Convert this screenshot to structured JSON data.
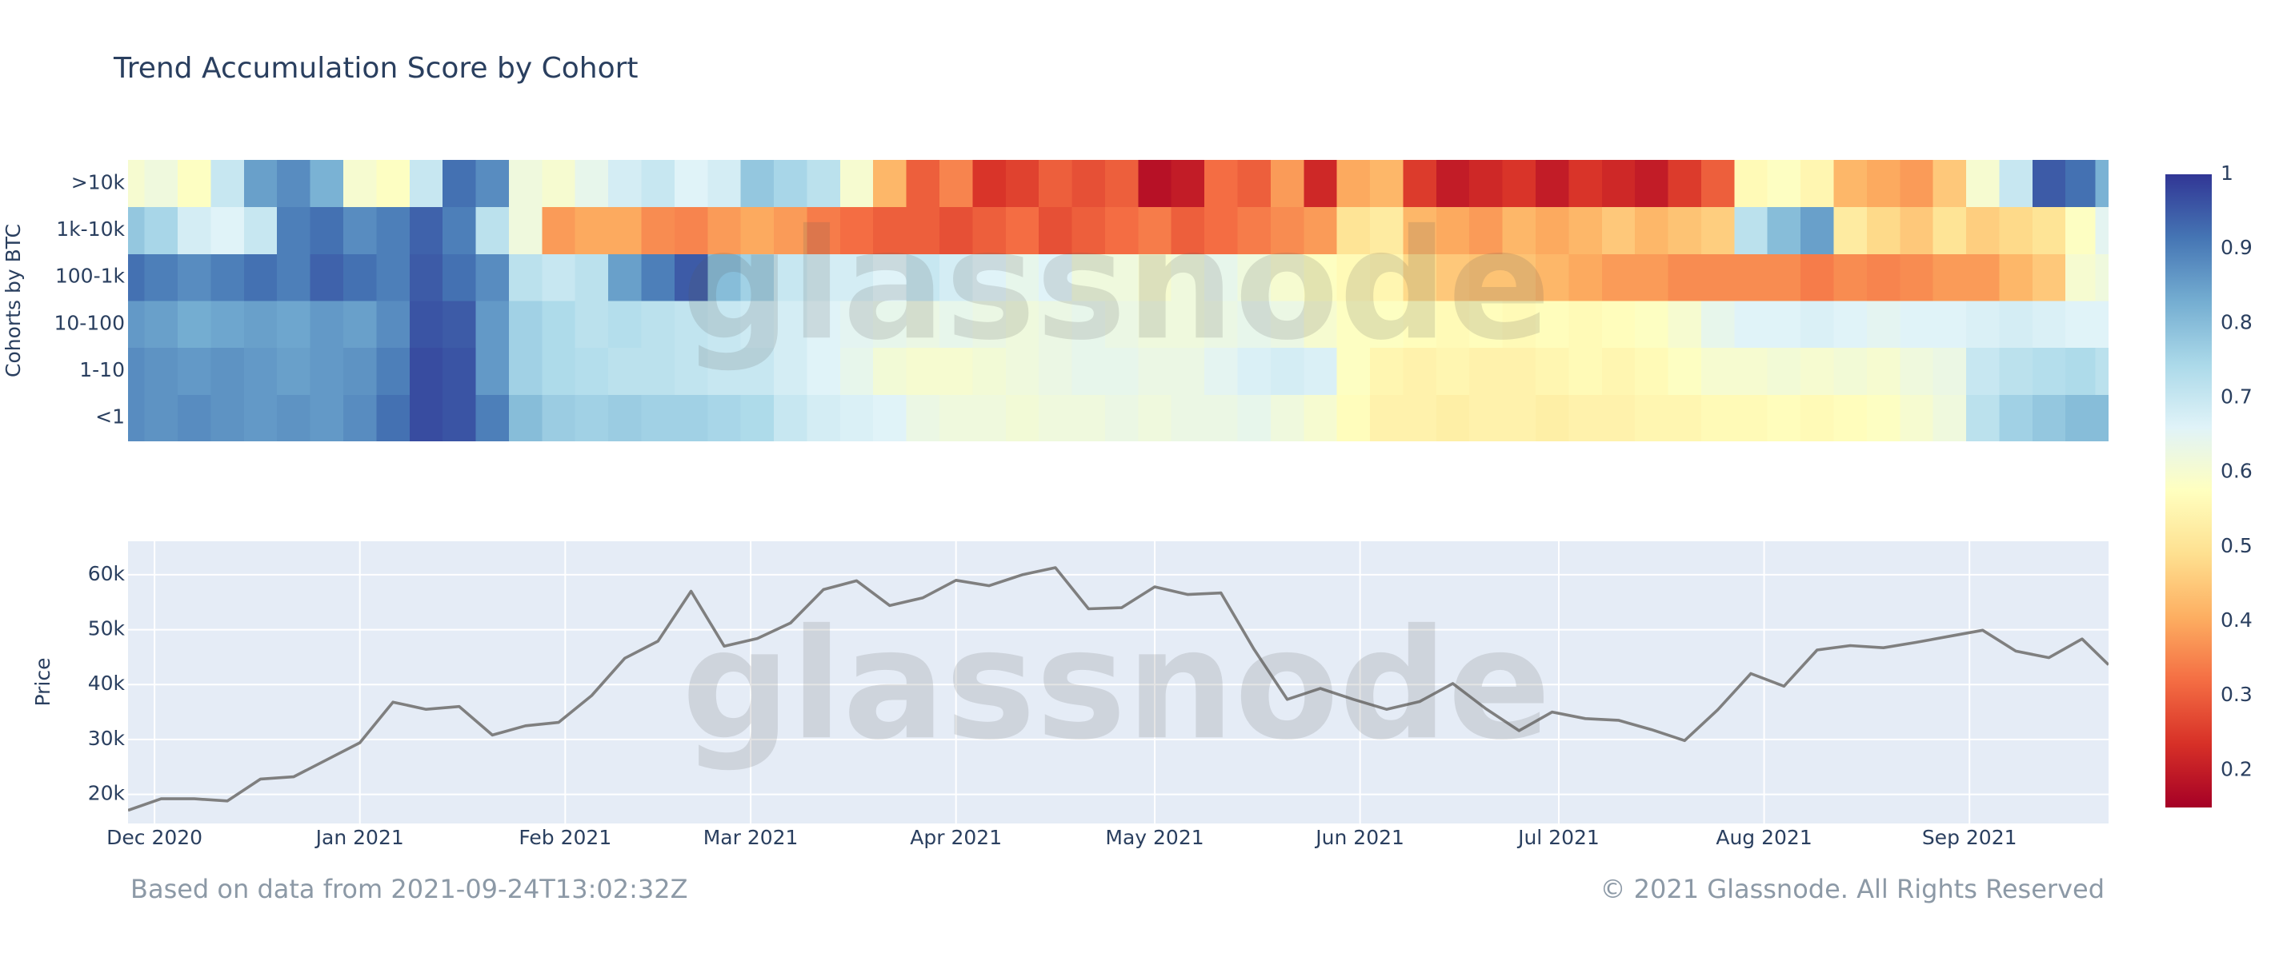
{
  "title": "Trend Accumulation Score by Cohort",
  "watermark": "glassnode",
  "footer": {
    "left": "Based on data from 2021-09-24T13:02:32Z",
    "right": "© 2021 Glassnode. All Rights Reserved"
  },
  "chart_data": [
    {
      "type": "heatmap",
      "y_label": "Cohorts by BTC",
      "xlim": [
        "2020-11-27",
        "2021-09-22"
      ],
      "x": [
        "2020-11-27",
        "2020-12-02",
        "2020-12-07",
        "2020-12-12",
        "2020-12-17",
        "2020-12-22",
        "2020-12-27",
        "2021-01-01",
        "2021-01-06",
        "2021-01-11",
        "2021-01-16",
        "2021-01-21",
        "2021-01-26",
        "2021-01-31",
        "2021-02-05",
        "2021-02-10",
        "2021-02-15",
        "2021-02-20",
        "2021-02-25",
        "2021-03-02",
        "2021-03-07",
        "2021-03-12",
        "2021-03-17",
        "2021-03-22",
        "2021-03-27",
        "2021-04-01",
        "2021-04-06",
        "2021-04-11",
        "2021-04-16",
        "2021-04-21",
        "2021-04-26",
        "2021-05-01",
        "2021-05-06",
        "2021-05-11",
        "2021-05-16",
        "2021-05-21",
        "2021-05-26",
        "2021-05-31",
        "2021-06-05",
        "2021-06-10",
        "2021-06-15",
        "2021-06-20",
        "2021-06-25",
        "2021-06-30",
        "2021-07-05",
        "2021-07-10",
        "2021-07-15",
        "2021-07-20",
        "2021-07-25",
        "2021-07-30",
        "2021-08-04",
        "2021-08-09",
        "2021-08-14",
        "2021-08-19",
        "2021-08-24",
        "2021-08-29",
        "2021-09-03",
        "2021-09-08",
        "2021-09-13",
        "2021-09-18",
        "2021-09-22"
      ],
      "categories": [
        "<1",
        "1-10",
        "10-100",
        "100-1k",
        "1k-10k",
        ">10k"
      ],
      "z": [
        [
          0.88,
          0.87,
          0.88,
          0.87,
          0.86,
          0.87,
          0.86,
          0.88,
          0.92,
          0.97,
          0.96,
          0.9,
          0.8,
          0.77,
          0.76,
          0.77,
          0.76,
          0.76,
          0.75,
          0.74,
          0.7,
          0.68,
          0.67,
          0.66,
          0.63,
          0.62,
          0.62,
          0.61,
          0.62,
          0.62,
          0.63,
          0.62,
          0.63,
          0.63,
          0.64,
          0.62,
          0.6,
          0.57,
          0.54,
          0.54,
          0.53,
          0.54,
          0.54,
          0.53,
          0.54,
          0.54,
          0.55,
          0.55,
          0.56,
          0.56,
          0.57,
          0.56,
          0.57,
          0.58,
          0.6,
          0.62,
          0.72,
          0.76,
          0.78,
          0.8,
          0.8
        ],
        [
          0.88,
          0.87,
          0.86,
          0.87,
          0.86,
          0.85,
          0.86,
          0.87,
          0.9,
          0.97,
          0.96,
          0.86,
          0.76,
          0.74,
          0.73,
          0.72,
          0.72,
          0.71,
          0.7,
          0.7,
          0.68,
          0.66,
          0.64,
          0.61,
          0.6,
          0.6,
          0.61,
          0.62,
          0.63,
          0.64,
          0.64,
          0.63,
          0.63,
          0.65,
          0.67,
          0.68,
          0.67,
          0.58,
          0.55,
          0.54,
          0.55,
          0.54,
          0.54,
          0.55,
          0.56,
          0.55,
          0.56,
          0.58,
          0.6,
          0.6,
          0.61,
          0.6,
          0.61,
          0.6,
          0.62,
          0.63,
          0.7,
          0.72,
          0.73,
          0.74,
          0.72
        ],
        [
          0.86,
          0.85,
          0.83,
          0.84,
          0.85,
          0.84,
          0.86,
          0.85,
          0.88,
          0.96,
          0.95,
          0.86,
          0.76,
          0.74,
          0.72,
          0.73,
          0.72,
          0.71,
          0.7,
          0.69,
          0.68,
          0.66,
          0.65,
          0.64,
          0.63,
          0.64,
          0.63,
          0.62,
          0.63,
          0.64,
          0.63,
          0.62,
          0.62,
          0.63,
          0.64,
          0.63,
          0.6,
          0.58,
          0.58,
          0.57,
          0.56,
          0.57,
          0.56,
          0.57,
          0.56,
          0.57,
          0.58,
          0.6,
          0.64,
          0.66,
          0.66,
          0.67,
          0.66,
          0.65,
          0.66,
          0.66,
          0.67,
          0.68,
          0.67,
          0.66,
          0.66
        ],
        [
          0.92,
          0.9,
          0.88,
          0.9,
          0.92,
          0.9,
          0.94,
          0.92,
          0.9,
          0.95,
          0.92,
          0.88,
          0.72,
          0.7,
          0.72,
          0.85,
          0.9,
          0.95,
          0.8,
          0.76,
          0.7,
          0.68,
          0.68,
          0.66,
          0.7,
          0.68,
          0.66,
          0.64,
          0.66,
          0.62,
          0.62,
          0.6,
          0.62,
          0.64,
          0.62,
          0.6,
          0.58,
          0.56,
          0.55,
          0.48,
          0.45,
          0.44,
          0.44,
          0.42,
          0.4,
          0.38,
          0.38,
          0.36,
          0.36,
          0.36,
          0.36,
          0.34,
          0.36,
          0.35,
          0.36,
          0.38,
          0.38,
          0.42,
          0.45,
          0.6,
          0.62
        ],
        [
          0.78,
          0.75,
          0.68,
          0.66,
          0.7,
          0.9,
          0.92,
          0.88,
          0.9,
          0.94,
          0.9,
          0.72,
          0.62,
          0.38,
          0.4,
          0.4,
          0.36,
          0.35,
          0.38,
          0.4,
          0.38,
          0.34,
          0.32,
          0.3,
          0.3,
          0.28,
          0.3,
          0.32,
          0.28,
          0.3,
          0.32,
          0.34,
          0.3,
          0.32,
          0.34,
          0.36,
          0.38,
          0.5,
          0.52,
          0.42,
          0.4,
          0.38,
          0.42,
          0.4,
          0.42,
          0.45,
          0.42,
          0.44,
          0.46,
          0.72,
          0.8,
          0.85,
          0.52,
          0.48,
          0.45,
          0.5,
          0.46,
          0.48,
          0.5,
          0.58,
          0.65
        ],
        [
          0.6,
          0.62,
          0.58,
          0.7,
          0.85,
          0.88,
          0.82,
          0.6,
          0.58,
          0.7,
          0.92,
          0.88,
          0.62,
          0.6,
          0.64,
          0.68,
          0.7,
          0.66,
          0.68,
          0.78,
          0.75,
          0.72,
          0.6,
          0.42,
          0.3,
          0.35,
          0.24,
          0.26,
          0.3,
          0.28,
          0.3,
          0.18,
          0.2,
          0.32,
          0.3,
          0.38,
          0.22,
          0.4,
          0.42,
          0.25,
          0.2,
          0.22,
          0.24,
          0.2,
          0.24,
          0.22,
          0.2,
          0.25,
          0.3,
          0.56,
          0.58,
          0.55,
          0.42,
          0.4,
          0.38,
          0.45,
          0.6,
          0.7,
          0.95,
          0.92,
          0.82
        ]
      ],
      "zlim": [
        0.15,
        1
      ],
      "colorscale": [
        "#a50026",
        "#d73027",
        "#f46d43",
        "#fdae61",
        "#fee090",
        "#ffffbf",
        "#e0f3f8",
        "#abd9e9",
        "#74add1",
        "#4575b4",
        "#313695"
      ],
      "colorbar_ticks": [
        0.2,
        0.3,
        0.4,
        0.5,
        0.6,
        0.7,
        0.8,
        0.9,
        1
      ]
    },
    {
      "type": "line",
      "y_label": "Price",
      "color": "#7f7f7f",
      "grid": true,
      "xlim": [
        "2020-11-27",
        "2021-09-22"
      ],
      "x": [
        "2020-11-27",
        "2020-12-02",
        "2020-12-07",
        "2020-12-12",
        "2020-12-17",
        "2020-12-22",
        "2020-12-27",
        "2021-01-01",
        "2021-01-06",
        "2021-01-11",
        "2021-01-16",
        "2021-01-21",
        "2021-01-26",
        "2021-01-31",
        "2021-02-05",
        "2021-02-10",
        "2021-02-15",
        "2021-02-20",
        "2021-02-25",
        "2021-03-02",
        "2021-03-07",
        "2021-03-12",
        "2021-03-17",
        "2021-03-22",
        "2021-03-27",
        "2021-04-01",
        "2021-04-06",
        "2021-04-11",
        "2021-04-16",
        "2021-04-21",
        "2021-04-26",
        "2021-05-01",
        "2021-05-06",
        "2021-05-11",
        "2021-05-16",
        "2021-05-21",
        "2021-05-26",
        "2021-05-31",
        "2021-06-05",
        "2021-06-10",
        "2021-06-15",
        "2021-06-20",
        "2021-06-25",
        "2021-06-30",
        "2021-07-05",
        "2021-07-10",
        "2021-07-15",
        "2021-07-20",
        "2021-07-25",
        "2021-07-30",
        "2021-08-04",
        "2021-08-09",
        "2021-08-14",
        "2021-08-19",
        "2021-08-24",
        "2021-08-29",
        "2021-09-03",
        "2021-09-08",
        "2021-09-13",
        "2021-09-18",
        "2021-09-22"
      ],
      "values": [
        17100,
        19200,
        19200,
        18800,
        22800,
        23200,
        26300,
        29400,
        36800,
        35500,
        36000,
        30800,
        32500,
        33100,
        38000,
        44800,
        47900,
        57000,
        47000,
        48400,
        51200,
        57300,
        58900,
        54400,
        55800,
        59000,
        58000,
        60000,
        61300,
        53800,
        54000,
        57800,
        56400,
        56700,
        46400,
        37300,
        39300,
        37300,
        35500,
        36900,
        40200,
        35600,
        31600,
        35000,
        33800,
        33500,
        31800,
        29800,
        35400,
        42000,
        39700,
        46300,
        47100,
        46700,
        47700,
        48800,
        49900,
        46100,
        44900,
        48300,
        43600
      ],
      "ylim": [
        14700,
        66100
      ],
      "yticks": [
        {
          "value": 20000,
          "label": "20k"
        },
        {
          "value": 30000,
          "label": "30k"
        },
        {
          "value": 40000,
          "label": "40k"
        },
        {
          "value": 50000,
          "label": "50k"
        },
        {
          "value": 60000,
          "label": "60k"
        }
      ],
      "xticks": [
        {
          "value": "2020-12-01",
          "label": "Dec 2020"
        },
        {
          "value": "2021-01-01",
          "label": "Jan 2021"
        },
        {
          "value": "2021-02-01",
          "label": "Feb 2021"
        },
        {
          "value": "2021-03-01",
          "label": "Mar 2021"
        },
        {
          "value": "2021-04-01",
          "label": "Apr 2021"
        },
        {
          "value": "2021-05-01",
          "label": "May 2021"
        },
        {
          "value": "2021-06-01",
          "label": "Jun 2021"
        },
        {
          "value": "2021-07-01",
          "label": "Jul 2021"
        },
        {
          "value": "2021-08-01",
          "label": "Aug 2021"
        },
        {
          "value": "2021-09-01",
          "label": "Sep 2021"
        }
      ]
    }
  ]
}
